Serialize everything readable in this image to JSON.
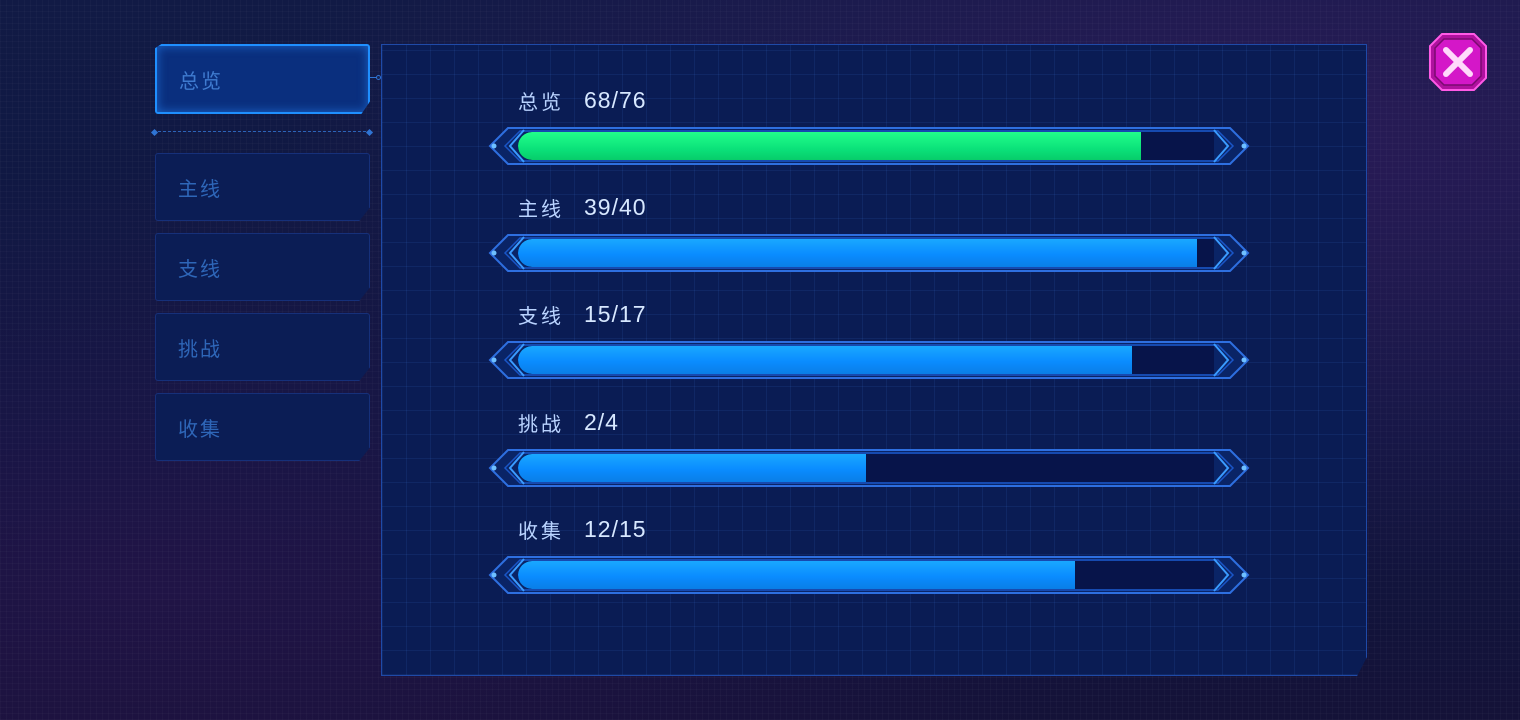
{
  "sidebar": {
    "tabs": [
      {
        "label": "总览",
        "active": true
      },
      {
        "label": "主线",
        "active": false
      },
      {
        "label": "支线",
        "active": false
      },
      {
        "label": "挑战",
        "active": false
      },
      {
        "label": "收集",
        "active": false
      }
    ]
  },
  "progress": {
    "rows": [
      {
        "name": "总览",
        "count": "68/76",
        "current": 68,
        "total": 76,
        "color": "green"
      },
      {
        "name": "主线",
        "count": "39/40",
        "current": 39,
        "total": 40,
        "color": "blue"
      },
      {
        "name": "支线",
        "count": "15/17",
        "current": 15,
        "total": 17,
        "color": "blue"
      },
      {
        "name": "挑战",
        "count": "2/4",
        "current": 2,
        "total": 4,
        "color": "blue"
      },
      {
        "name": "收集",
        "count": "12/15",
        "current": 12,
        "total": 15,
        "color": "blue"
      }
    ]
  },
  "colors": {
    "accent_blue": "#0a8cff",
    "accent_green": "#0be27a",
    "close_magenta": "#d417c8"
  },
  "close_button": {
    "icon": "close-icon"
  }
}
